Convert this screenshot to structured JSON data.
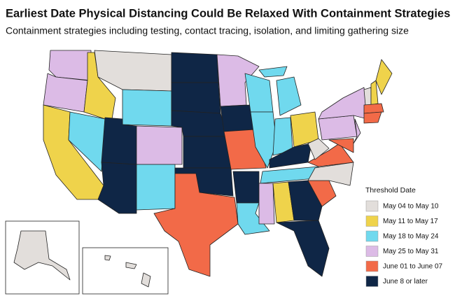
{
  "title": "Earliest Date Physical Distancing Could Be Relaxed With Containment Strategies",
  "subtitle": "Containment strategies including testing, contact tracing, isolation, and limiting gathering size",
  "legend": {
    "title": "Threshold Date",
    "items": [
      {
        "label": "May 04 to May 10",
        "color": "#e2dedb"
      },
      {
        "label": "May 11 to May 17",
        "color": "#efd34b"
      },
      {
        "label": "May 18 to May 24",
        "color": "#70d9ee"
      },
      {
        "label": "May 25 to May 31",
        "color": "#dcbbe6"
      },
      {
        "label": "June 01 to June 07",
        "color": "#f26a48"
      },
      {
        "label": "June 8 or later",
        "color": "#0f2646"
      }
    ]
  }
}
